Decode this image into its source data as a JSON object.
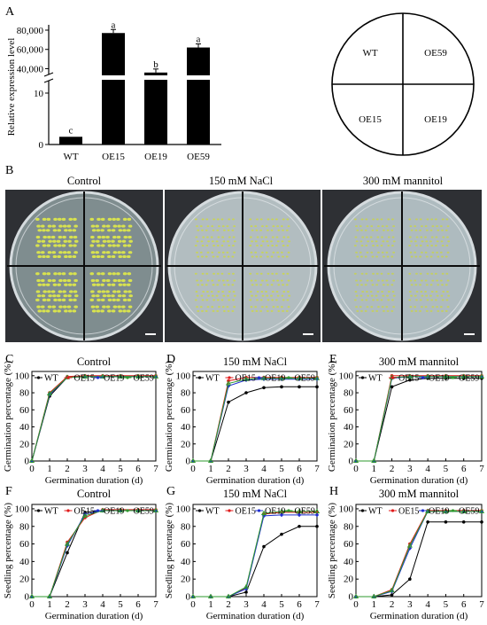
{
  "panels": {
    "A": "A",
    "B": "B",
    "C": "C",
    "D": "D",
    "E": "E",
    "F": "F",
    "G": "G",
    "H": "H"
  },
  "panel_a": {
    "chart_data": {
      "type": "bar",
      "categories": [
        "WT",
        "OE15",
        "OE19",
        "OE59"
      ],
      "values": [
        1.5,
        77000,
        36000,
        62000
      ],
      "significance": [
        "c",
        "a",
        "b",
        "a"
      ],
      "ylabel": "Relative expression level",
      "yticks_lower": [
        "0",
        "10"
      ],
      "yticks_upper": [
        "40,000",
        "60,000",
        "80,000"
      ],
      "y_axis_break": [
        12,
        34000
      ]
    },
    "plate_labels": [
      "WT",
      "OE59",
      "OE15",
      "OE19"
    ]
  },
  "panel_b": {
    "titles": [
      "Control",
      "150 mM NaCl",
      "300 mM mannitol"
    ],
    "colors": {
      "plate_bg": "#2e3034",
      "agar_control": "#7f8d8f",
      "agar_nacl": "#b2bdc0",
      "agar_mannitol": "#aebbbf",
      "seedling": "#c9d34a"
    }
  },
  "legend": {
    "items": [
      {
        "name": "WT",
        "color": "#000000",
        "marker": "circle"
      },
      {
        "name": "OE15",
        "color": "#e01a1a",
        "marker": "circle"
      },
      {
        "name": "OE19",
        "color": "#1f2fd0",
        "marker": "diamond"
      },
      {
        "name": "OE59",
        "color": "#2e9a2e",
        "marker": "triangle"
      }
    ]
  },
  "axes": {
    "xlabel": "Germination duration (d)",
    "ylabel_germ": "Germination percentage (%)",
    "ylabel_seed": "Seedling percentage (%)",
    "xticks": [
      "0",
      "1",
      "2",
      "3",
      "4",
      "5",
      "6",
      "7"
    ],
    "yticks": [
      "0",
      "20",
      "40",
      "60",
      "80",
      "100"
    ]
  },
  "chart_data": [
    {
      "id": "C",
      "type": "line",
      "title": "Control",
      "x": [
        0,
        1,
        2,
        3,
        4,
        5,
        6,
        7
      ],
      "series": [
        {
          "name": "WT",
          "values": [
            0,
            76,
            98,
            99,
            99,
            99,
            99,
            99
          ]
        },
        {
          "name": "OE15",
          "values": [
            0,
            80,
            99,
            100,
            100,
            100,
            100,
            100
          ]
        },
        {
          "name": "OE19",
          "values": [
            0,
            78,
            98,
            99,
            99,
            99,
            99,
            99
          ]
        },
        {
          "name": "OE59",
          "values": [
            0,
            79,
            98,
            99,
            99,
            99,
            99,
            99
          ]
        }
      ],
      "ylim": [
        0,
        105
      ]
    },
    {
      "id": "D",
      "type": "line",
      "title": "150 mM NaCl",
      "x": [
        0,
        1,
        2,
        3,
        4,
        5,
        6,
        7
      ],
      "series": [
        {
          "name": "WT",
          "values": [
            0,
            0,
            69,
            80,
            86,
            87,
            87,
            87
          ]
        },
        {
          "name": "OE15",
          "values": [
            0,
            0,
            94,
            98,
            98,
            98,
            98,
            98
          ]
        },
        {
          "name": "OE19",
          "values": [
            0,
            0,
            88,
            95,
            96,
            96,
            96,
            96
          ]
        },
        {
          "name": "OE59",
          "values": [
            0,
            0,
            91,
            96,
            97,
            97,
            97,
            97
          ]
        }
      ],
      "ylim": [
        0,
        105
      ]
    },
    {
      "id": "E",
      "type": "line",
      "title": "300 mM mannitol",
      "x": [
        0,
        1,
        2,
        3,
        4,
        5,
        6,
        7
      ],
      "series": [
        {
          "name": "WT",
          "values": [
            0,
            0,
            87,
            95,
            97,
            97,
            97,
            97
          ]
        },
        {
          "name": "OE15",
          "values": [
            0,
            0,
            100,
            100,
            100,
            100,
            100,
            100
          ]
        },
        {
          "name": "OE19",
          "values": [
            0,
            0,
            97,
            99,
            99,
            99,
            99,
            99
          ]
        },
        {
          "name": "OE59",
          "values": [
            0,
            0,
            98,
            99,
            99,
            99,
            99,
            99
          ]
        }
      ],
      "ylim": [
        0,
        105
      ]
    },
    {
      "id": "F",
      "type": "line",
      "title": "Control",
      "x": [
        0,
        1,
        2,
        3,
        4,
        5,
        6,
        7
      ],
      "series": [
        {
          "name": "WT",
          "values": [
            0,
            0,
            50,
            96,
            98,
            98,
            98,
            98
          ]
        },
        {
          "name": "OE15",
          "values": [
            0,
            0,
            62,
            90,
            99,
            99,
            99,
            99
          ]
        },
        {
          "name": "OE19",
          "values": [
            0,
            0,
            58,
            94,
            98,
            98,
            98,
            98
          ]
        },
        {
          "name": "OE59",
          "values": [
            0,
            0,
            60,
            92,
            98,
            98,
            98,
            98
          ]
        }
      ],
      "ylim": [
        0,
        105
      ]
    },
    {
      "id": "G",
      "type": "line",
      "title": "150 mM NaCl",
      "x": [
        0,
        1,
        2,
        3,
        4,
        5,
        6,
        7
      ],
      "series": [
        {
          "name": "WT",
          "values": [
            0,
            0,
            0,
            5,
            57,
            71,
            80,
            80
          ]
        },
        {
          "name": "OE15",
          "values": [
            0,
            0,
            0,
            10,
            94,
            96,
            96,
            96
          ]
        },
        {
          "name": "OE19",
          "values": [
            0,
            0,
            0,
            9,
            92,
            93,
            93,
            93
          ]
        },
        {
          "name": "OE59",
          "values": [
            0,
            0,
            0,
            11,
            95,
            97,
            97,
            97
          ]
        }
      ],
      "ylim": [
        0,
        105
      ]
    },
    {
      "id": "H",
      "type": "line",
      "title": "300 mM mannitol",
      "x": [
        0,
        1,
        2,
        3,
        4,
        5,
        6,
        7
      ],
      "series": [
        {
          "name": "WT",
          "values": [
            0,
            0,
            2,
            20,
            85,
            85,
            85,
            85
          ]
        },
        {
          "name": "OE15",
          "values": [
            0,
            0,
            8,
            60,
            98,
            98,
            98,
            98
          ]
        },
        {
          "name": "OE19",
          "values": [
            0,
            0,
            6,
            55,
            97,
            97,
            97,
            97
          ]
        },
        {
          "name": "OE59",
          "values": [
            0,
            0,
            7,
            58,
            97,
            97,
            97,
            97
          ]
        }
      ],
      "ylim": [
        0,
        105
      ]
    }
  ]
}
